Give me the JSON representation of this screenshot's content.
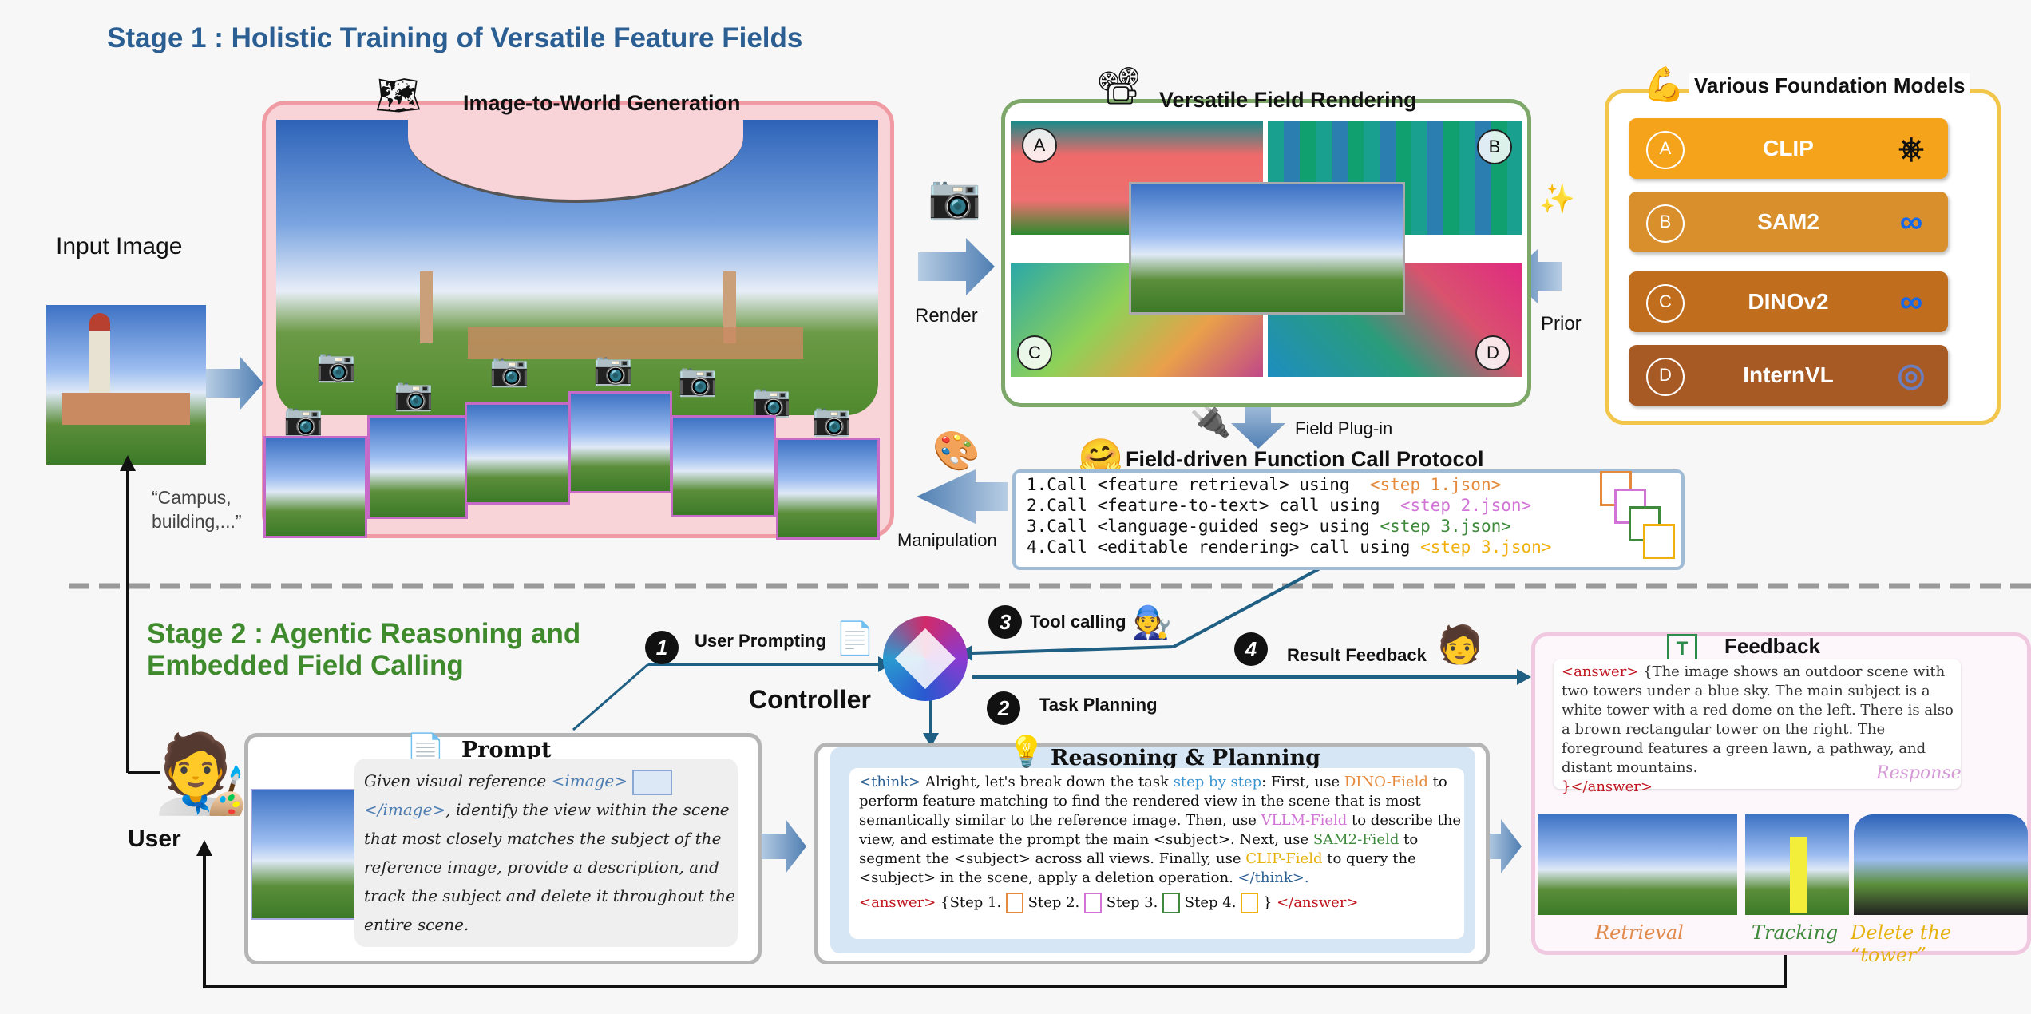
{
  "stage1": {
    "title": "Stage 1 : Holistic Training of Versatile Feature Fields"
  },
  "stage2": {
    "title_line1": "Stage 2 : Agentic Reasoning and",
    "title_line2": "Embedded Field Calling"
  },
  "input": {
    "label": "Input Image",
    "caption_line1": "“Campus,",
    "caption_line2": "building,...”"
  },
  "generation": {
    "title": "Image-to-World Generation"
  },
  "rendering": {
    "title": "Versatile Field Rendering",
    "letters": [
      "A",
      "B",
      "C",
      "D"
    ]
  },
  "models": {
    "title": "Various Foundation Models",
    "items": [
      {
        "letter": "A",
        "name": "CLIP",
        "color": "#f4a31a"
      },
      {
        "letter": "B",
        "name": "SAM2",
        "color": "#d9902c"
      },
      {
        "letter": "C",
        "name": "DINOv2",
        "color": "#c06e1e"
      },
      {
        "letter": "D",
        "name": "InternVL",
        "color": "#a85a24"
      }
    ]
  },
  "arrows": {
    "render": "Render",
    "prior": "Prior",
    "plugin": "Field Plug-in",
    "manipulation": "Manipulation"
  },
  "protocol": {
    "title": "Field-driven Function Call Protocol",
    "lines": [
      {
        "call": "1.Call <feature retrieval> using",
        "file": "<step 1.json>",
        "color": "#e58a3c"
      },
      {
        "call": "2.Call <feature-to-text> call using",
        "file": "<step 2.json>",
        "color": "#d174d6"
      },
      {
        "call": "3.Call <language-guided seg> using",
        "file": "<step 3.json>",
        "color": "#3f8a3c"
      },
      {
        "call": "4.Call <editable rendering> call using",
        "file": "<step 3.json>",
        "color": "#f0b10e"
      }
    ]
  },
  "flow": {
    "user_prompting": "User Prompting",
    "tool_calling": "Tool calling",
    "result_feedback": "Result Feedback",
    "task_planning": "Task Planning",
    "controller": "Controller",
    "user": "User",
    "n1": "1",
    "n2": "2",
    "n3": "3",
    "n4": "4"
  },
  "prompt": {
    "title": "Prompt",
    "p1": "Given visual reference ",
    "tag_open": "<image>",
    "tag_close": "</image>",
    "p2": ", identify the view within the scene that most closely matches the subject of the reference image, provide a description, and track the subject and delete it throughout the entire scene."
  },
  "reasoning": {
    "title": "Reasoning & Planning",
    "think_open": "<think>",
    "t1": " Alright, let's break down the task ",
    "step_by_step": "step by step",
    "t2": ": First, use ",
    "dino": "DINO-Field",
    "t3": " to perform feature matching to find the rendered view in the scene that is most semantically similar to the reference image. Then, use ",
    "vllm": "VLLM-Field",
    "t4": " to describe the view, and estimate the prompt the main <subject>. Next, use ",
    "sam": "SAM2-Field",
    "t5": " to segment the <subject> across all views. Finally, use ",
    "clip": "CLIP-Field",
    "t6": " to query the <subject> in the scene, apply a deletion operation. ",
    "think_close": "</think>.",
    "answer_open": "<answer>",
    "a1": " {Step 1. ",
    "a2": " Step 2. ",
    "a3": " Step 3. ",
    "a4": " Step 4. ",
    "a5": " } ",
    "answer_close": "</answer>"
  },
  "feedback": {
    "title": "Feedback",
    "answer_open": "<answer>",
    "text": " {The image shows an outdoor scene with two towers under a blue sky. The main subject is a white tower with a red dome on the left. There is also a brown rectangular tower on the right. The foreground features a green lawn, a pathway, and distant mountains.",
    "answer_close": "}</answer>",
    "response": "Response",
    "retrieval": "Retrieval",
    "tracking": "Tracking",
    "delete": "Delete the “tower”"
  },
  "colors": {
    "blue_title": "#2b5f93",
    "green_title": "#3f8a2c",
    "pink_panel": "#f4cfd3",
    "green_border": "#7ea86a",
    "gold_border": "#f2c64a",
    "arrow": "#6f95bd"
  }
}
